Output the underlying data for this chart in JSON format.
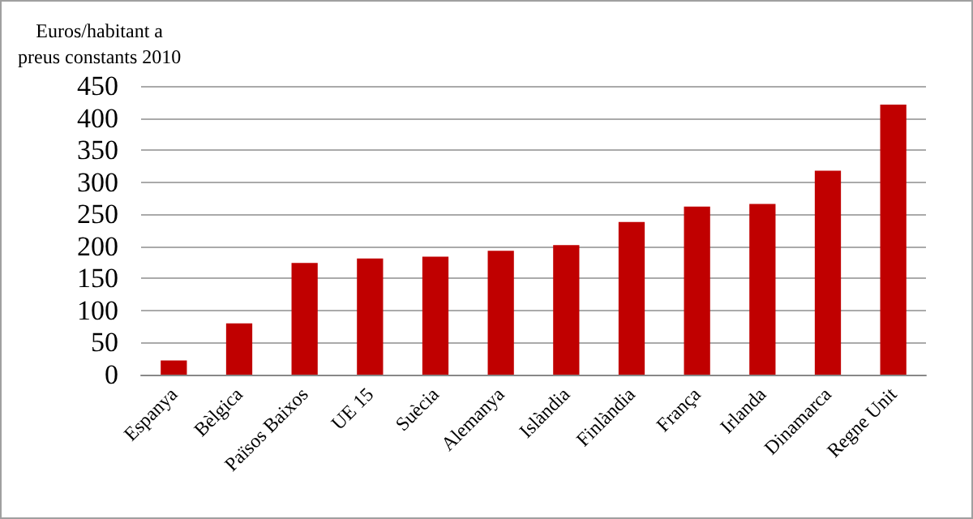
{
  "chart_data": {
    "type": "bar",
    "ylabel": "Euros/habitant a\npreus constants 2010",
    "categories": [
      "Espanya",
      "Bèlgica",
      "Països Baixos",
      "UE 15",
      "Suècia",
      "Alemanya",
      "Islàndia",
      "Finlàndia",
      "França",
      "Irlanda",
      "Dinamarca",
      "Regne Unit"
    ],
    "values": [
      22,
      80,
      174,
      181,
      184,
      193,
      202,
      238,
      262,
      266,
      318,
      421
    ],
    "color": "#c00000",
    "ylim": [
      0,
      450
    ],
    "yticks": [
      0,
      50,
      100,
      150,
      200,
      250,
      300,
      350,
      400,
      450
    ],
    "grid": "y"
  }
}
